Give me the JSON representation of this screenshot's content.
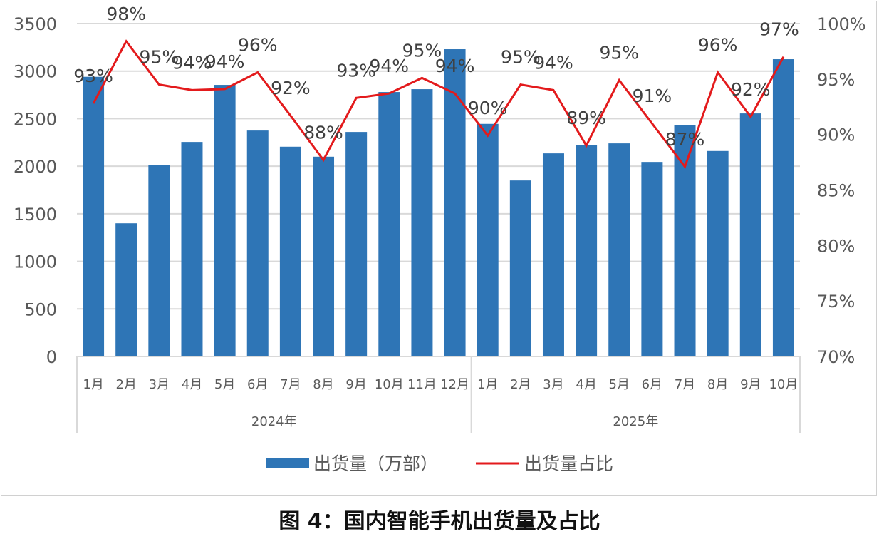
{
  "caption": "图 4：国内智能手机出货量及占比",
  "chart_data": {
    "type": "bar+line",
    "title": "",
    "categories": [
      "1月",
      "2月",
      "3月",
      "4月",
      "5月",
      "6月",
      "7月",
      "8月",
      "9月",
      "10月",
      "11月",
      "12月",
      "1月",
      "2月",
      "3月",
      "4月",
      "5月",
      "6月",
      "7月",
      "8月",
      "9月",
      "10月"
    ],
    "groups": [
      {
        "label": "2024年",
        "count": 12
      },
      {
        "label": "2025年",
        "count": 10
      }
    ],
    "y_left": {
      "ylim": [
        0,
        3500
      ],
      "ticks": [
        "0",
        "500",
        "1000",
        "1500",
        "2000",
        "2500",
        "3000",
        "3500"
      ]
    },
    "y_right": {
      "ylim": [
        70,
        100
      ],
      "ticks": [
        "70%",
        "75%",
        "80%",
        "85%",
        "90%",
        "95%",
        "100%"
      ]
    },
    "grid": true,
    "legend_position": "bottom",
    "series": [
      {
        "name": "出货量（万部）",
        "type": "bar",
        "axis": "left",
        "color": "#2e75b6",
        "values": [
          2940,
          1400,
          2010,
          2255,
          2855,
          2375,
          2205,
          2100,
          2360,
          2780,
          2810,
          3230,
          2445,
          1850,
          2135,
          2220,
          2240,
          2045,
          2435,
          2160,
          2555,
          3125
        ]
      },
      {
        "name": "出货量占比",
        "type": "line",
        "axis": "right",
        "color": "#e31a1c",
        "values": [
          92.8,
          98.4,
          94.5,
          94.0,
          94.1,
          95.6,
          91.7,
          87.7,
          93.3,
          93.7,
          95.1,
          93.7,
          89.9,
          94.5,
          94.0,
          89.0,
          94.9,
          91.0,
          87.1,
          95.6,
          91.6,
          97.0
        ],
        "data_labels": [
          "93%",
          "98%",
          "95%",
          "94%",
          "94%",
          "96%",
          "92%",
          "88%",
          "93%",
          "94%",
          "95%",
          "94%",
          "90%",
          "95%",
          "94%",
          "89%",
          "95%",
          "91%",
          "87%",
          "96%",
          "92%",
          "97%"
        ]
      }
    ]
  }
}
